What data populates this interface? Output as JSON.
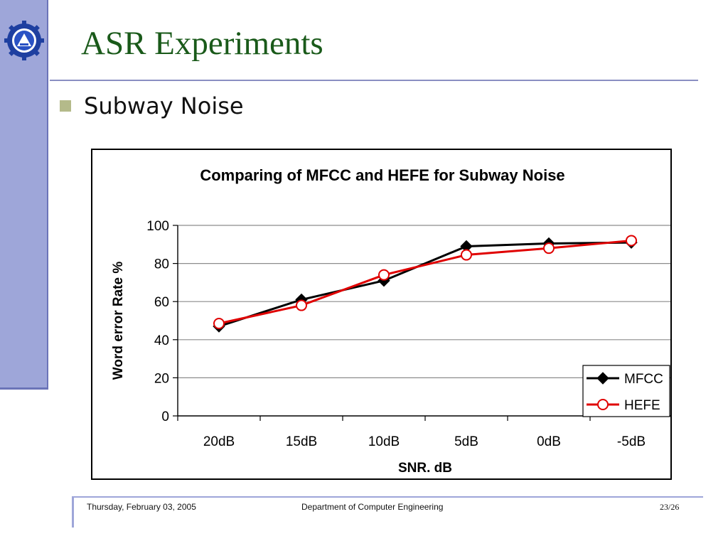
{
  "slide": {
    "title": "ASR Experiments",
    "bullet": "Subway Noise",
    "logo_icon": "university-gear-emblem"
  },
  "footer": {
    "date": "Thursday, February 03, 2005",
    "department": "Department of Computer Engineering",
    "page": "23/26"
  },
  "colors": {
    "title": "#1a5a1a",
    "side_bar": "#9ea6d9",
    "mfcc": "#000000",
    "hefe": "#e00000"
  },
  "chart_data": {
    "type": "line",
    "title": "Comparing of MFCC and HEFE for Subway Noise",
    "xlabel": "SNR. dB",
    "ylabel": "Word error Rate %",
    "categories": [
      "20dB",
      "15dB",
      "10dB",
      "5dB",
      "0dB",
      "-5dB"
    ],
    "ylim": [
      0,
      100
    ],
    "yticks": [
      0,
      20,
      40,
      60,
      80,
      100
    ],
    "grid": true,
    "legend": "bottom-right",
    "series": [
      {
        "name": "MFCC",
        "marker": "diamond",
        "values": [
          47,
          61,
          71,
          89,
          90.5,
          91
        ]
      },
      {
        "name": "HEFE",
        "marker": "circle",
        "values": [
          48.5,
          58,
          74,
          84.5,
          88,
          92
        ]
      }
    ]
  }
}
